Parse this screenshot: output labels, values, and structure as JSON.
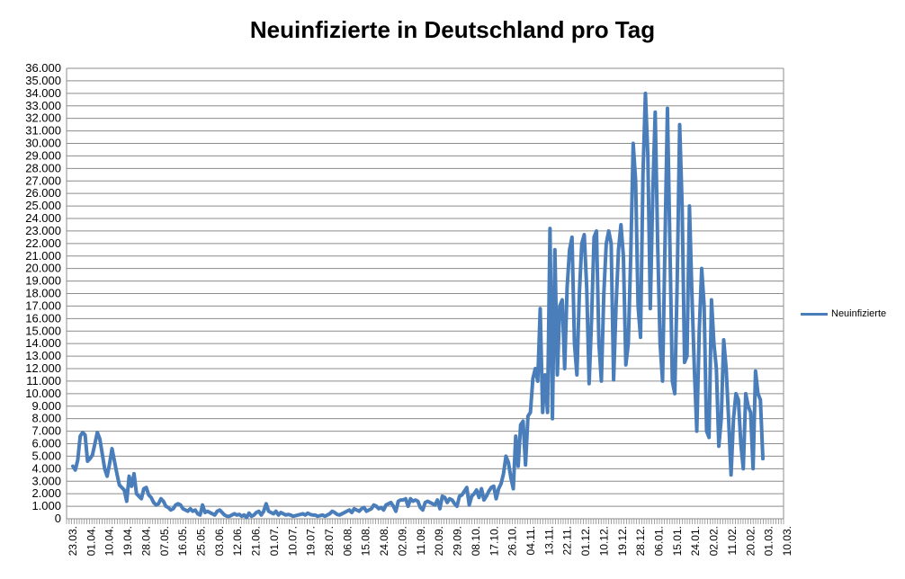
{
  "chart_data": {
    "type": "line",
    "title": "Neuinfizierte in Deutschland pro Tag",
    "xlabel": "",
    "ylabel": "",
    "ylim": [
      0,
      36000
    ],
    "y_ticks": [
      0,
      1000,
      2000,
      3000,
      4000,
      5000,
      6000,
      7000,
      8000,
      9000,
      10000,
      11000,
      12000,
      13000,
      14000,
      15000,
      16000,
      17000,
      18000,
      19000,
      20000,
      21000,
      22000,
      23000,
      24000,
      25000,
      26000,
      27000,
      28000,
      29000,
      30000,
      31000,
      32000,
      33000,
      34000,
      35000,
      36000
    ],
    "y_tick_labels": [
      "0",
      "1.000",
      "2.000",
      "3.000",
      "4.000",
      "5.000",
      "6.000",
      "7.000",
      "8.000",
      "9.000",
      "10.000",
      "11.000",
      "12.000",
      "13.000",
      "14.000",
      "15.000",
      "16.000",
      "17.000",
      "18.000",
      "19.000",
      "20.000",
      "21.000",
      "22.000",
      "23.000",
      "24.000",
      "25.000",
      "26.000",
      "27.000",
      "28.000",
      "29.000",
      "30.000",
      "31.000",
      "32.000",
      "33.000",
      "34.000",
      "35.000",
      "36.000"
    ],
    "x_tick_labels": [
      "23.03.",
      "01.04.",
      "10.04.",
      "19.04.",
      "28.04.",
      "07.05.",
      "16.05.",
      "25.05.",
      "03.06.",
      "12.06.",
      "21.06.",
      "01.07.",
      "10.07.",
      "19.07.",
      "28.07.",
      "06.08.",
      "15.08.",
      "24.08.",
      "02.09.",
      "11.09.",
      "20.09.",
      "29.09.",
      "08.10.",
      "17.10.",
      "26.10.",
      "04.11.",
      "13.11.",
      "22.11.",
      "01.12.",
      "10.12.",
      "19.12.",
      "28.12.",
      "06.01.",
      "15.01.",
      "24.01.",
      "02.02.",
      "11.02.",
      "20.02.",
      "01.03.",
      "10.03."
    ],
    "grid": true,
    "legend_position": "right",
    "series": [
      {
        "name": "Neuinfizierte",
        "color": "#4a7ebb",
        "points": [
          [
            0,
            4200
          ],
          [
            1,
            3900
          ],
          [
            2,
            4700
          ],
          [
            3,
            6600
          ],
          [
            4,
            6900
          ],
          [
            5,
            6700
          ],
          [
            6,
            4600
          ],
          [
            7,
            4800
          ],
          [
            8,
            5100
          ],
          [
            9,
            6000
          ],
          [
            10,
            6900
          ],
          [
            11,
            6400
          ],
          [
            12,
            5200
          ],
          [
            13,
            4000
          ],
          [
            14,
            3400
          ],
          [
            15,
            4400
          ],
          [
            16,
            5600
          ],
          [
            17,
            4600
          ],
          [
            18,
            3600
          ],
          [
            19,
            2700
          ],
          [
            20,
            2500
          ],
          [
            21,
            2300
          ],
          [
            22,
            1400
          ],
          [
            23,
            3400
          ],
          [
            24,
            2600
          ],
          [
            25,
            3600
          ],
          [
            26,
            2000
          ],
          [
            27,
            1800
          ],
          [
            28,
            1600
          ],
          [
            29,
            2400
          ],
          [
            30,
            2500
          ],
          [
            31,
            1900
          ],
          [
            32,
            1700
          ],
          [
            33,
            1300
          ],
          [
            34,
            1100
          ],
          [
            35,
            1200
          ],
          [
            36,
            1600
          ],
          [
            37,
            1400
          ],
          [
            38,
            1000
          ],
          [
            39,
            900
          ],
          [
            40,
            700
          ],
          [
            41,
            800
          ],
          [
            42,
            1100
          ],
          [
            43,
            1200
          ],
          [
            44,
            1100
          ],
          [
            45,
            800
          ],
          [
            46,
            700
          ],
          [
            47,
            600
          ],
          [
            48,
            800
          ],
          [
            49,
            600
          ],
          [
            50,
            700
          ],
          [
            51,
            400
          ],
          [
            52,
            300
          ],
          [
            53,
            1100
          ],
          [
            54,
            500
          ],
          [
            55,
            600
          ],
          [
            56,
            500
          ],
          [
            57,
            400
          ],
          [
            58,
            300
          ],
          [
            59,
            600
          ],
          [
            60,
            700
          ],
          [
            61,
            500
          ],
          [
            62,
            300
          ],
          [
            63,
            200
          ],
          [
            64,
            200
          ],
          [
            65,
            300
          ],
          [
            66,
            400
          ],
          [
            67,
            300
          ],
          [
            68,
            350
          ],
          [
            69,
            200
          ],
          [
            70,
            300
          ],
          [
            71,
            100
          ],
          [
            72,
            450
          ],
          [
            73,
            200
          ],
          [
            74,
            300
          ],
          [
            75,
            500
          ],
          [
            76,
            600
          ],
          [
            77,
            300
          ],
          [
            78,
            600
          ],
          [
            79,
            1200
          ],
          [
            80,
            600
          ],
          [
            81,
            500
          ],
          [
            82,
            400
          ],
          [
            83,
            600
          ],
          [
            84,
            300
          ],
          [
            85,
            500
          ],
          [
            86,
            400
          ],
          [
            87,
            300
          ],
          [
            88,
            350
          ],
          [
            89,
            300
          ],
          [
            90,
            200
          ],
          [
            91,
            250
          ],
          [
            92,
            300
          ],
          [
            93,
            350
          ],
          [
            94,
            400
          ],
          [
            95,
            300
          ],
          [
            96,
            450
          ],
          [
            97,
            350
          ],
          [
            98,
            300
          ],
          [
            99,
            300
          ],
          [
            100,
            200
          ],
          [
            101,
            250
          ],
          [
            102,
            300
          ],
          [
            103,
            200
          ],
          [
            104,
            300
          ],
          [
            105,
            400
          ],
          [
            106,
            600
          ],
          [
            107,
            500
          ],
          [
            108,
            350
          ],
          [
            109,
            300
          ],
          [
            110,
            400
          ],
          [
            111,
            500
          ],
          [
            112,
            600
          ],
          [
            113,
            700
          ],
          [
            114,
            500
          ],
          [
            115,
            800
          ],
          [
            116,
            700
          ],
          [
            117,
            600
          ],
          [
            118,
            800
          ],
          [
            119,
            900
          ],
          [
            120,
            600
          ],
          [
            121,
            700
          ],
          [
            122,
            800
          ],
          [
            123,
            1100
          ],
          [
            124,
            1000
          ],
          [
            125,
            800
          ],
          [
            126,
            900
          ],
          [
            127,
            700
          ],
          [
            128,
            1100
          ],
          [
            129,
            1200
          ],
          [
            130,
            1300
          ],
          [
            131,
            1000
          ],
          [
            132,
            600
          ],
          [
            133,
            1400
          ],
          [
            134,
            1500
          ],
          [
            135,
            1500
          ],
          [
            136,
            1600
          ],
          [
            137,
            1000
          ],
          [
            138,
            1600
          ],
          [
            139,
            1400
          ],
          [
            140,
            1500
          ],
          [
            141,
            1400
          ],
          [
            142,
            900
          ],
          [
            143,
            700
          ],
          [
            144,
            1300
          ],
          [
            145,
            1400
          ],
          [
            146,
            1300
          ],
          [
            147,
            1200
          ],
          [
            148,
            1100
          ],
          [
            149,
            1500
          ],
          [
            150,
            800
          ],
          [
            151,
            1800
          ],
          [
            152,
            1700
          ],
          [
            153,
            1300
          ],
          [
            154,
            1600
          ],
          [
            155,
            1500
          ],
          [
            156,
            1200
          ],
          [
            157,
            1000
          ],
          [
            158,
            1800
          ],
          [
            159,
            1900
          ],
          [
            160,
            2200
          ],
          [
            161,
            2500
          ],
          [
            162,
            1100
          ],
          [
            163,
            1800
          ],
          [
            164,
            2000
          ],
          [
            165,
            2300
          ],
          [
            166,
            1700
          ],
          [
            167,
            2400
          ],
          [
            168,
            1500
          ],
          [
            169,
            1800
          ],
          [
            170,
            2200
          ],
          [
            171,
            2500
          ],
          [
            172,
            2600
          ],
          [
            173,
            1600
          ],
          [
            174,
            2400
          ],
          [
            175,
            2800
          ],
          [
            176,
            3600
          ],
          [
            177,
            5000
          ],
          [
            178,
            4500
          ],
          [
            179,
            3300
          ],
          [
            180,
            2400
          ],
          [
            181,
            6600
          ],
          [
            182,
            4200
          ],
          [
            183,
            7500
          ],
          [
            184,
            7800
          ],
          [
            185,
            4300
          ],
          [
            186,
            8200
          ],
          [
            187,
            8500
          ],
          [
            188,
            11200
          ],
          [
            189,
            12000
          ],
          [
            190,
            11000
          ],
          [
            191,
            16800
          ],
          [
            192,
            8500
          ],
          [
            193,
            11500
          ],
          [
            194,
            8500
          ],
          [
            195,
            23200
          ],
          [
            196,
            8000
          ],
          [
            197,
            21500
          ],
          [
            198,
            11500
          ],
          [
            199,
            17000
          ],
          [
            200,
            17500
          ],
          [
            201,
            12000
          ],
          [
            202,
            18500
          ],
          [
            203,
            21500
          ],
          [
            204,
            22500
          ],
          [
            205,
            14000
          ],
          [
            206,
            11500
          ],
          [
            207,
            18000
          ],
          [
            208,
            22000
          ],
          [
            209,
            22700
          ],
          [
            210,
            18500
          ],
          [
            211,
            10800
          ],
          [
            212,
            16000
          ],
          [
            213,
            22500
          ],
          [
            214,
            23000
          ],
          [
            215,
            14000
          ],
          [
            216,
            11000
          ],
          [
            217,
            18000
          ],
          [
            218,
            22000
          ],
          [
            219,
            23000
          ],
          [
            220,
            22000
          ],
          [
            221,
            11100
          ],
          [
            222,
            17000
          ],
          [
            223,
            21500
          ],
          [
            224,
            23500
          ],
          [
            225,
            21000
          ],
          [
            226,
            12300
          ],
          [
            227,
            14000
          ],
          [
            228,
            21000
          ],
          [
            229,
            30000
          ],
          [
            230,
            27000
          ],
          [
            231,
            17000
          ],
          [
            232,
            14500
          ],
          [
            233,
            27500
          ],
          [
            234,
            34000
          ],
          [
            235,
            29000
          ],
          [
            236,
            16800
          ],
          [
            237,
            26000
          ],
          [
            238,
            32500
          ],
          [
            239,
            22000
          ],
          [
            240,
            14000
          ],
          [
            241,
            11000
          ],
          [
            242,
            22000
          ],
          [
            243,
            32800
          ],
          [
            244,
            22000
          ],
          [
            245,
            11000
          ],
          [
            246,
            10000
          ],
          [
            247,
            19000
          ],
          [
            248,
            31500
          ],
          [
            249,
            25000
          ],
          [
            250,
            12500
          ],
          [
            251,
            13000
          ],
          [
            252,
            25000
          ],
          [
            253,
            18000
          ],
          [
            254,
            12000
          ],
          [
            255,
            7000
          ],
          [
            256,
            15000
          ],
          [
            257,
            20000
          ],
          [
            258,
            17000
          ],
          [
            259,
            7000
          ],
          [
            260,
            6500
          ],
          [
            261,
            17500
          ],
          [
            262,
            14000
          ],
          [
            263,
            12000
          ],
          [
            264,
            5800
          ],
          [
            265,
            8000
          ],
          [
            266,
            14300
          ],
          [
            267,
            12000
          ],
          [
            268,
            8000
          ],
          [
            269,
            3500
          ],
          [
            270,
            8000
          ],
          [
            271,
            10000
          ],
          [
            272,
            9500
          ],
          [
            273,
            6000
          ],
          [
            274,
            4000
          ],
          [
            275,
            10000
          ],
          [
            276,
            9000
          ],
          [
            277,
            8500
          ],
          [
            278,
            4000
          ],
          [
            279,
            11800
          ],
          [
            280,
            10000
          ],
          [
            281,
            9500
          ],
          [
            282,
            4800
          ]
        ]
      }
    ]
  }
}
